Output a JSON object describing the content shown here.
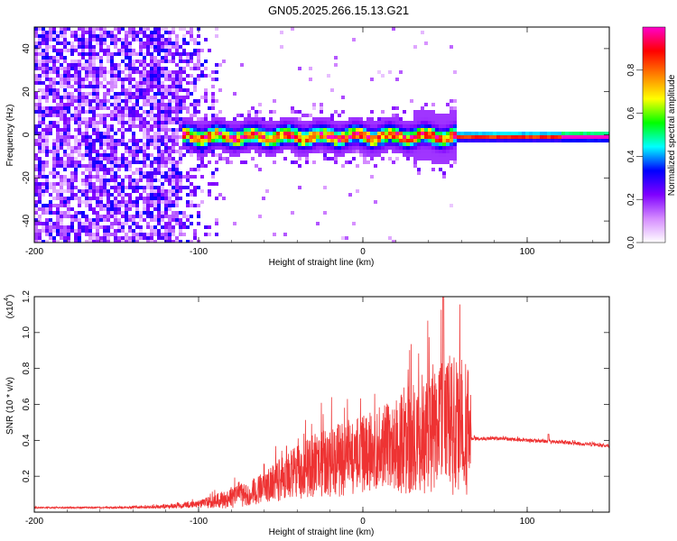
{
  "title": "GN05.2025.266.15.13.G21",
  "chart_data": [
    {
      "type": "heatmap",
      "xlabel": "Height of straight line (km)",
      "ylabel": "Frequency (Hz)",
      "xlim": [
        -200,
        150
      ],
      "ylim": [
        -50,
        50
      ],
      "xticks": [
        -200,
        -100,
        0,
        100
      ],
      "yticks": [
        -40,
        -20,
        0,
        20,
        40
      ],
      "grid": false,
      "colorbar": {
        "label": "Normalized spectral amplitude",
        "range": [
          0,
          1
        ],
        "ticks": [
          "0.0",
          "0.2",
          "0.4",
          "0.6",
          "0.8"
        ],
        "colors": [
          "#ffffff",
          "#d58cff",
          "#7f00ff",
          "#0000ff",
          "#00ffff",
          "#00ff00",
          "#ffff00",
          "#ff8000",
          "#ff0000",
          "#ff00cc"
        ]
      },
      "regions": [
        {
          "x_range": [
            -200,
            -90
          ],
          "freq_range": [
            -50,
            50
          ],
          "description": "scattered noise",
          "amplitude": 0.15
        },
        {
          "x_range": [
            -110,
            55
          ],
          "freq_center": 0,
          "band_halfwidth": 8,
          "description": "noisy signal band",
          "amplitude": 0.5
        },
        {
          "x_range": [
            55,
            150
          ],
          "freq_center": 0,
          "band_halfwidth": 3,
          "description": "clean signal line",
          "amplitude": 0.95
        }
      ]
    },
    {
      "type": "line",
      "xlabel": "Height of straight line (km)",
      "ylabel": "SNR (10 * v/v)",
      "y_multiplier": "(x10",
      "y_multiplier_exp": "4",
      "y_multiplier_close": ")",
      "xlim": [
        -200,
        150
      ],
      "ylim": [
        0,
        1.2
      ],
      "xticks": [
        -200,
        -100,
        0,
        100
      ],
      "yticks": [
        "0.2",
        "0.4",
        "0.6",
        "0.8",
        "1.0",
        "1.2"
      ],
      "grid": false,
      "series": [
        {
          "color": "#ee3333",
          "x": [
            -200,
            -150,
            -120,
            -100,
            -90,
            -80,
            -70,
            -60,
            -50,
            -40,
            -30,
            -20,
            -10,
            0,
            10,
            20,
            30,
            40,
            50,
            60,
            65,
            66,
            80,
            100,
            120,
            150
          ],
          "y": [
            0.025,
            0.025,
            0.03,
            0.045,
            0.06,
            0.08,
            0.1,
            0.14,
            0.18,
            0.22,
            0.26,
            0.28,
            0.3,
            0.32,
            0.35,
            0.38,
            0.42,
            0.45,
            0.48,
            0.47,
            0.46,
            0.41,
            0.41,
            0.4,
            0.39,
            0.37
          ],
          "spread": [
            0.003,
            0.005,
            0.01,
            0.02,
            0.04,
            0.06,
            0.07,
            0.09,
            0.12,
            0.15,
            0.18,
            0.2,
            0.22,
            0.22,
            0.24,
            0.28,
            0.32,
            0.36,
            0.4,
            0.38,
            0.36,
            0.01,
            0.01,
            0.01,
            0.01,
            0.01
          ],
          "peak": {
            "x": 49,
            "y": 1.2
          }
        }
      ]
    }
  ]
}
